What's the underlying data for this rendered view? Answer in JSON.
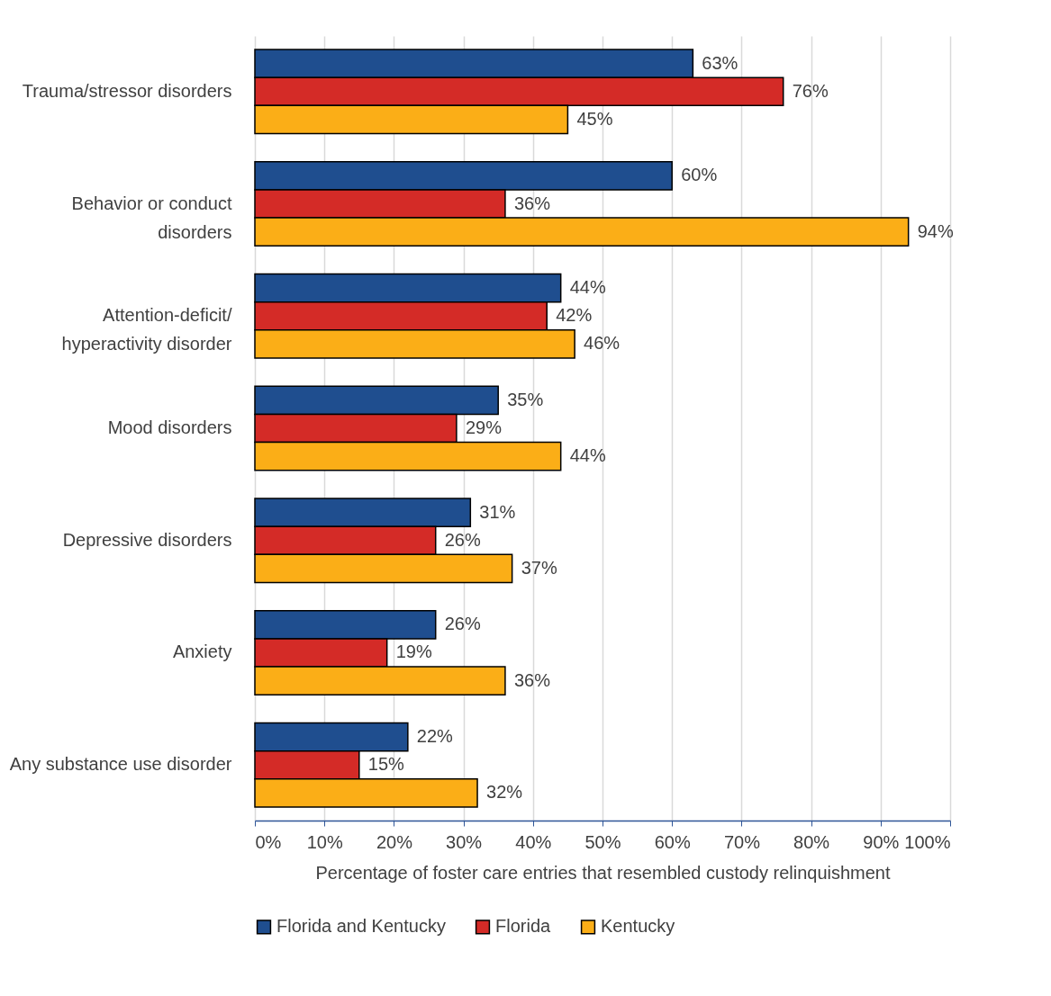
{
  "chart_data": {
    "type": "bar",
    "orientation": "horizontal",
    "xlabel": "Percentage of foster care entries that resembled custody relinquishment",
    "categories": [
      "Trauma/stressor disorders",
      "Behavior or conduct disorders",
      "Attention-deficit/hyperactivity disorder",
      "Mood disorders",
      "Depressive disorders",
      "Anxiety",
      "Any substance use disorder"
    ],
    "series": [
      {
        "name": "Florida and Kentucky",
        "color": "#1f4e8f",
        "values": [
          63,
          60,
          44,
          35,
          31,
          26,
          22
        ],
        "value_labels": [
          "63%",
          "60%",
          "44%",
          "35%",
          "31%",
          "26%",
          "22%"
        ]
      },
      {
        "name": "Florida",
        "color": "#d42b27",
        "values": [
          76,
          36,
          42,
          29,
          26,
          19,
          15
        ],
        "value_labels": [
          "76%",
          "36%",
          "42%",
          "29%",
          "26%",
          "19%",
          "15%"
        ]
      },
      {
        "name": "Kentucky",
        "color": "#fbae17",
        "values": [
          45,
          94,
          46,
          44,
          37,
          36,
          32
        ],
        "value_labels": [
          "45%",
          "94%",
          "46%",
          "44%",
          "37%",
          "36%",
          "32%"
        ]
      }
    ],
    "xlim": [
      0,
      100
    ],
    "xticks": [
      {
        "value": 0,
        "label": "0%"
      },
      {
        "value": 10,
        "label": "10%"
      },
      {
        "value": 20,
        "label": "20%"
      },
      {
        "value": 30,
        "label": "30%"
      },
      {
        "value": 40,
        "label": "40%"
      },
      {
        "value": 50,
        "label": "50%"
      },
      {
        "value": 60,
        "label": "60%"
      },
      {
        "value": 70,
        "label": "70%"
      },
      {
        "value": 80,
        "label": "80%"
      },
      {
        "value": 90,
        "label": "90%"
      },
      {
        "value": 100,
        "label": "100%"
      }
    ],
    "grid": "x",
    "legend": "bottom"
  }
}
